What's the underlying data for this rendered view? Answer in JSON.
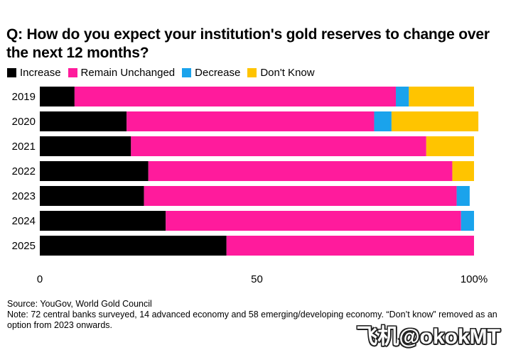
{
  "chart_data": {
    "type": "bar",
    "orientation": "horizontal",
    "stacked": true,
    "title": "Q: How do you expect your institution's gold reserves to change over the next 12 months?",
    "categories": [
      "2019",
      "2020",
      "2021",
      "2022",
      "2023",
      "2024",
      "2025"
    ],
    "series": [
      {
        "name": "Increase",
        "color": "#000000",
        "values": [
          8,
          20,
          21,
          25,
          24,
          29,
          43
        ]
      },
      {
        "name": "Remain Unchanged",
        "color": "#ff1b9c",
        "values": [
          74,
          57,
          68,
          70,
          72,
          68,
          57
        ]
      },
      {
        "name": "Decrease",
        "color": "#1aa3ec",
        "values": [
          3,
          4,
          0,
          0,
          3,
          3,
          0
        ]
      },
      {
        "name": "Don't Know",
        "color": "#ffc400",
        "values": [
          15,
          20,
          11,
          5,
          0,
          0,
          0
        ]
      }
    ],
    "xlim": [
      0,
      100
    ],
    "x_ticks": [
      "0",
      "50",
      "100%"
    ],
    "legend_position": "top-left",
    "grid": false
  },
  "footer": {
    "source": "Source: YouGov, World Gold Council",
    "note": "Note: 72 central banks surveyed, 14 advanced economy and 58 emerging/developing economy. “Don’t know” removed as an option from 2023 onwards."
  },
  "watermark": "飞机@okokMT"
}
